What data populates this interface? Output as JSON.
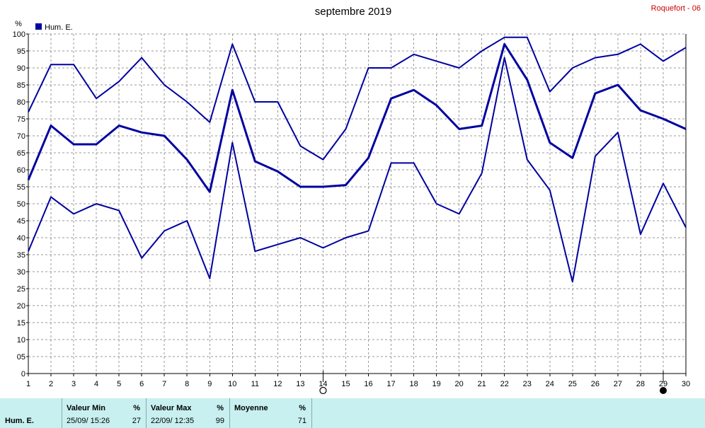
{
  "header": {
    "title": "septembre 2019",
    "station": "Roquefort - 06",
    "unit": "%"
  },
  "chart_data": {
    "type": "line",
    "title": "septembre 2019",
    "ylabel": "%",
    "xlabel": "",
    "x": [
      1,
      2,
      3,
      4,
      5,
      6,
      7,
      8,
      9,
      10,
      11,
      12,
      13,
      14,
      15,
      16,
      17,
      18,
      19,
      20,
      21,
      22,
      23,
      24,
      25,
      26,
      27,
      28,
      29,
      30
    ],
    "x_ticks": [
      "1",
      "2",
      "3",
      "4",
      "5",
      "6",
      "7",
      "8",
      "9",
      "10",
      "11",
      "12",
      "13",
      "14",
      "15",
      "16",
      "17",
      "18",
      "19",
      "20",
      "21",
      "22",
      "23",
      "24",
      "25",
      "26",
      "27",
      "28",
      "29",
      "30"
    ],
    "ylim": [
      0,
      100
    ],
    "y_ticks": [
      "0",
      "05",
      "10",
      "15",
      "20",
      "25",
      "30",
      "35",
      "40",
      "45",
      "50",
      "55",
      "60",
      "65",
      "70",
      "75",
      "80",
      "85",
      "90",
      "95",
      "100"
    ],
    "grid": true,
    "legend": {
      "placement": "top-left",
      "entries": [
        "Hum. E."
      ]
    },
    "series": [
      {
        "name": "Hum. E.",
        "role": "max",
        "values": [
          77,
          91,
          91,
          81,
          86,
          93,
          85,
          80,
          74,
          97,
          80,
          80,
          67,
          63,
          72,
          90,
          90,
          94,
          92,
          90,
          95,
          99,
          99,
          83,
          90,
          93,
          94,
          97,
          92,
          96
        ]
      },
      {
        "name": "Hum. E.",
        "role": "mean",
        "values": [
          57,
          73,
          67.5,
          67.5,
          73,
          71,
          70,
          63,
          53.5,
          83.5,
          62.5,
          59.5,
          55,
          55,
          55.5,
          63.5,
          81,
          83.5,
          79,
          72,
          73,
          97,
          86.5,
          68,
          63.5,
          82.5,
          85,
          77.5,
          75,
          72
        ]
      },
      {
        "name": "Hum. E.",
        "role": "min",
        "values": [
          36,
          52,
          47,
          50,
          48,
          34,
          42,
          45,
          28,
          68,
          36,
          38,
          40,
          37,
          40,
          42,
          62,
          62,
          50,
          47,
          59,
          93,
          63,
          54,
          27,
          64,
          71,
          41,
          56,
          43
        ]
      }
    ],
    "markers": [
      {
        "x": 14,
        "symbol": "open-circle"
      },
      {
        "x": 29,
        "symbol": "filled-circle"
      }
    ],
    "colors": {
      "line": "#0000a0",
      "grid": "#999999",
      "station": "#cc0000",
      "stats_bg": "#c8f0f0"
    }
  },
  "stats": {
    "row_label": "Hum. E.",
    "min": {
      "head": "Valeur Min",
      "unit": "%",
      "when": "25/09/  15:26",
      "value": "27"
    },
    "max": {
      "head": "Valeur Max",
      "unit": "%",
      "when": "22/09/  12:35",
      "value": "99"
    },
    "avg": {
      "head": "Moyenne",
      "unit": "%",
      "value": "71"
    }
  }
}
